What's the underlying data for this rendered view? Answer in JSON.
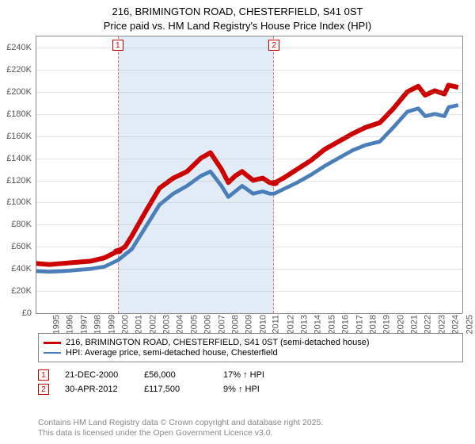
{
  "title_line1": "216, BRIMINGTON ROAD, CHESTERFIELD, S41 0ST",
  "title_line2": "Price paid vs. HM Land Registry's House Price Index (HPI)",
  "chart": {
    "type": "line",
    "background_color": "#ffffff",
    "grid_color": "#888888",
    "x_years": [
      1995,
      1996,
      1997,
      1998,
      1999,
      2000,
      2001,
      2002,
      2003,
      2004,
      2005,
      2006,
      2007,
      2008,
      2009,
      2010,
      2011,
      2012,
      2013,
      2014,
      2015,
      2016,
      2017,
      2018,
      2019,
      2020,
      2021,
      2022,
      2023,
      2024,
      2025
    ],
    "xlim": [
      1995,
      2026
    ],
    "ylim": [
      0,
      250000
    ],
    "ytick_step": 20000,
    "ytick_labels": [
      "£0",
      "£20K",
      "£40K",
      "£60K",
      "£80K",
      "£100K",
      "£120K",
      "£140K",
      "£160K",
      "£180K",
      "£200K",
      "£220K",
      "£240K"
    ],
    "shade_start": 2000.97,
    "shade_end": 2012.33,
    "shade_color": "rgba(173,200,230,0.35)",
    "shade_border_color": "#dd7777",
    "series": [
      {
        "name": "price_paid",
        "color": "#cc0000",
        "width": 2,
        "points": [
          [
            1995,
            45000
          ],
          [
            1996,
            44000
          ],
          [
            1997,
            45000
          ],
          [
            1998,
            46000
          ],
          [
            1999,
            47000
          ],
          [
            2000,
            50000
          ],
          [
            2000.97,
            56000
          ],
          [
            2001.5,
            60000
          ],
          [
            2002,
            70000
          ],
          [
            2003,
            92000
          ],
          [
            2004,
            113000
          ],
          [
            2005,
            122000
          ],
          [
            2006,
            128000
          ],
          [
            2007,
            140000
          ],
          [
            2007.7,
            145000
          ],
          [
            2008.5,
            130000
          ],
          [
            2009,
            118000
          ],
          [
            2009.5,
            124000
          ],
          [
            2010,
            128000
          ],
          [
            2010.8,
            120000
          ],
          [
            2011.5,
            122000
          ],
          [
            2012,
            118000
          ],
          [
            2012.33,
            117500
          ],
          [
            2013,
            122000
          ],
          [
            2014,
            130000
          ],
          [
            2015,
            138000
          ],
          [
            2016,
            148000
          ],
          [
            2017,
            155000
          ],
          [
            2018,
            162000
          ],
          [
            2019,
            168000
          ],
          [
            2020,
            172000
          ],
          [
            2021,
            185000
          ],
          [
            2022,
            200000
          ],
          [
            2022.8,
            205000
          ],
          [
            2023.3,
            197000
          ],
          [
            2024,
            201000
          ],
          [
            2024.7,
            198000
          ],
          [
            2025,
            206000
          ],
          [
            2025.7,
            204000
          ]
        ]
      },
      {
        "name": "hpi",
        "color": "#4a7ebb",
        "width": 1.6,
        "points": [
          [
            1995,
            38000
          ],
          [
            1996,
            37500
          ],
          [
            1997,
            38000
          ],
          [
            1998,
            39000
          ],
          [
            1999,
            40000
          ],
          [
            2000,
            42000
          ],
          [
            2001,
            48000
          ],
          [
            2002,
            58000
          ],
          [
            2003,
            78000
          ],
          [
            2004,
            98000
          ],
          [
            2005,
            108000
          ],
          [
            2006,
            115000
          ],
          [
            2007,
            124000
          ],
          [
            2007.7,
            128000
          ],
          [
            2008.5,
            115000
          ],
          [
            2009,
            105000
          ],
          [
            2009.5,
            110000
          ],
          [
            2010,
            115000
          ],
          [
            2010.8,
            108000
          ],
          [
            2011.5,
            110000
          ],
          [
            2012,
            108000
          ],
          [
            2012.33,
            108000
          ],
          [
            2013,
            112000
          ],
          [
            2014,
            118000
          ],
          [
            2015,
            125000
          ],
          [
            2016,
            133000
          ],
          [
            2017,
            140000
          ],
          [
            2018,
            147000
          ],
          [
            2019,
            152000
          ],
          [
            2020,
            155000
          ],
          [
            2021,
            168000
          ],
          [
            2022,
            182000
          ],
          [
            2022.8,
            185000
          ],
          [
            2023.3,
            178000
          ],
          [
            2024,
            180000
          ],
          [
            2024.7,
            178000
          ],
          [
            2025,
            186000
          ],
          [
            2025.7,
            188000
          ]
        ]
      }
    ],
    "markers": [
      {
        "label": "1",
        "x": 2000.97,
        "y": 56000,
        "color": "#cc0000"
      },
      {
        "label": "2",
        "x": 2012.33,
        "y": 117500,
        "color": "#cc0000"
      }
    ],
    "marker_label_box_color": "#cc0000"
  },
  "legend": [
    {
      "color": "#cc0000",
      "width": 3,
      "text": "216, BRIMINGTON ROAD, CHESTERFIELD, S41 0ST (semi-detached house)"
    },
    {
      "color": "#4a7ebb",
      "width": 2,
      "text": "HPI: Average price, semi-detached house, Chesterfield"
    }
  ],
  "footer_rows": [
    {
      "n": "1",
      "box_color": "#cc0000",
      "date": "21-DEC-2000",
      "price": "£56,000",
      "delta": "17% ↑ HPI"
    },
    {
      "n": "2",
      "box_color": "#cc0000",
      "date": "30-APR-2012",
      "price": "£117,500",
      "delta": "9% ↑ HPI"
    }
  ],
  "attribution_line1": "Contains HM Land Registry data © Crown copyright and database right 2025.",
  "attribution_line2": "This data is licensed under the Open Government Licence v3.0."
}
